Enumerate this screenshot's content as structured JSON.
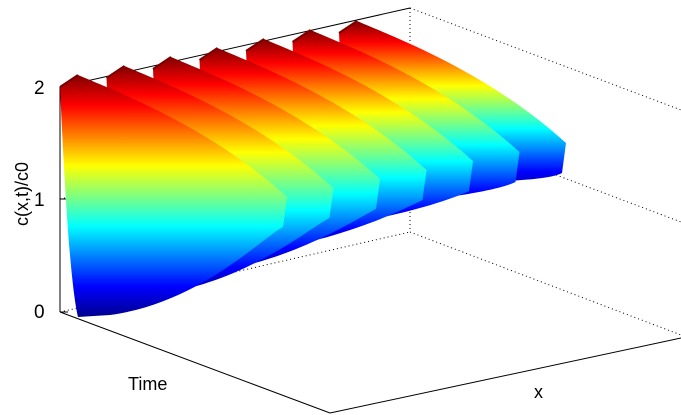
{
  "chart_data": {
    "type": "surface",
    "title": "",
    "xlabel": "x",
    "ylabel": "Time",
    "zlabel": "c(x,t)/c0",
    "zlim": [
      0,
      2
    ],
    "zticks": [
      "0",
      "1",
      "2"
    ],
    "grid": true,
    "colormap": "jet",
    "pulses": 7,
    "pulse_peak": 2.0,
    "pulse_min_first": 0.08,
    "pulse_min_last": 0.7
  }
}
